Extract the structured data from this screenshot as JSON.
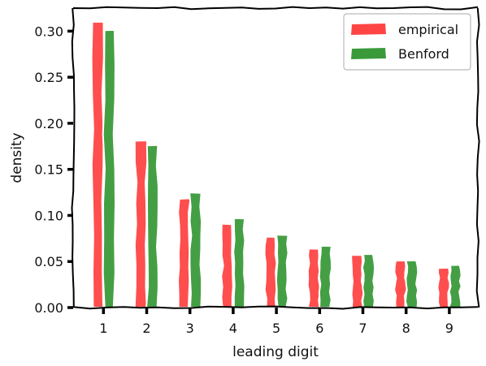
{
  "chart_data": {
    "type": "bar",
    "xlabel": "leading digit",
    "ylabel": "density",
    "categories": [
      "1",
      "2",
      "3",
      "4",
      "5",
      "6",
      "7",
      "8",
      "9"
    ],
    "series": [
      {
        "name": "empirical",
        "color": "#ff4444",
        "values": [
          0.31,
          0.181,
          0.118,
          0.091,
          0.077,
          0.064,
          0.057,
          0.051,
          0.043
        ]
      },
      {
        "name": "Benford",
        "color": "#3a9a3a",
        "values": [
          0.301,
          0.176,
          0.125,
          0.097,
          0.079,
          0.067,
          0.058,
          0.051,
          0.046
        ]
      }
    ],
    "ylim": [
      0,
      0.325
    ],
    "yticks": [
      "0.00",
      "0.05",
      "0.10",
      "0.15",
      "0.20",
      "0.25",
      "0.30"
    ],
    "legend_position": "top-right",
    "grid": false
  }
}
